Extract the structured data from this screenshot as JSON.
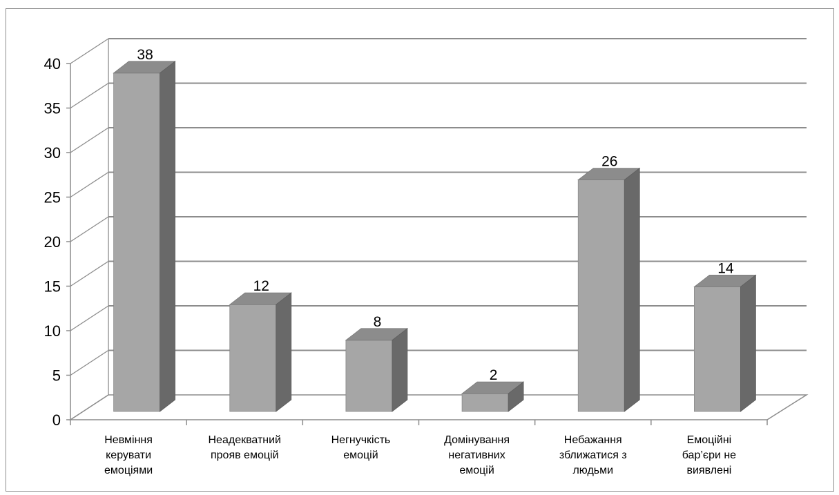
{
  "chart_data": {
    "type": "bar",
    "style": "3d-column",
    "categories": [
      "Невміння керувати емоціями",
      "Неадекватний прояв емоцій",
      "Негнучкість емоцій",
      "Домінування негативних емоцій",
      "Небажання зближатися з людьми",
      "Емоційні бар’єри не виявлені"
    ],
    "category_lines": [
      [
        "Невміння",
        "керувати",
        "емоціями"
      ],
      [
        "Неадекватний",
        "прояв емоцій"
      ],
      [
        "Негнучкість",
        "емоцій"
      ],
      [
        "Домінування",
        "негативних",
        "емоцій"
      ],
      [
        "Небажання",
        "зближатися з",
        "людьми"
      ],
      [
        "Емоційні",
        "бар’єри не",
        "виявлені"
      ]
    ],
    "values": [
      38,
      12,
      8,
      2,
      26,
      14
    ],
    "data_labels": [
      "38",
      "12",
      "8",
      "2",
      "26",
      "14"
    ],
    "yticks": [
      "0",
      "5",
      "10",
      "15",
      "20",
      "25",
      "30",
      "35",
      "40"
    ],
    "ylim": [
      0,
      40
    ],
    "grid": true,
    "legend": "none",
    "colors": {
      "bar_front": "#a6a6a6",
      "bar_top": "#8c8c8c",
      "bar_side": "#696969",
      "grid": "#8c8c8c",
      "axis": "#8c8c8c"
    }
  }
}
